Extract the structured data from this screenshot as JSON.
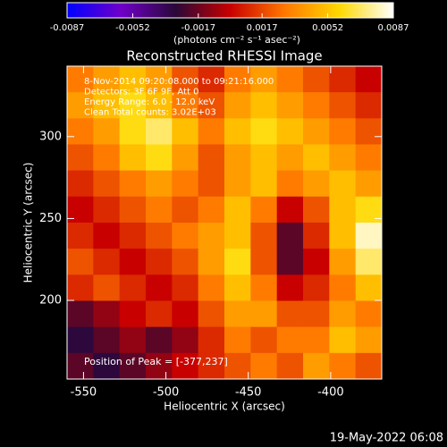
{
  "chart_data": {
    "type": "heatmap",
    "title": "Reconstructed RHESSI Image",
    "x_label": "Heliocentric X (arcsec)",
    "y_label": "Heliocentric Y (arcsec)",
    "colorbar_label": "(photons cm⁻² s⁻¹ asec⁻²)",
    "annotations": [
      "8-Nov-2014 09:20:08.000 to 09:21:16.000",
      "Detectors: 3F 6F 9F, Att 0",
      "Energy Range: 6.0 - 12.0 keV",
      "Clean     Total counts: 3.02E+03"
    ],
    "peak_label": "Position of Peak = [-377,237]",
    "footer": "19-May-2022 06:08",
    "xlim": [
      -560,
      -369
    ],
    "ylim": [
      152,
      343
    ],
    "xticks": [
      -550,
      -500,
      -450,
      -400
    ],
    "yticks": [
      200,
      250,
      300
    ],
    "zlim": [
      -0.0087,
      0.0087
    ],
    "zticks": [
      -0.0087,
      -0.0052,
      -0.0017,
      0.0017,
      0.0052,
      0.0087
    ],
    "colorscale": [
      "#0000ff",
      "#7000c8",
      "#2a0838",
      "#c80000",
      "#ff7800",
      "#ffd800",
      "#ffffff"
    ],
    "values": [
      [
        0.003,
        0.004,
        0.005,
        0.004,
        0.002,
        0.001,
        0.003,
        0.004,
        0.003,
        0.002,
        0.001,
        0.0
      ],
      [
        0.004,
        0.005,
        0.006,
        0.005,
        0.003,
        0.002,
        0.004,
        0.005,
        0.004,
        0.003,
        0.002,
        0.001
      ],
      [
        0.003,
        0.004,
        0.006,
        0.007,
        0.005,
        0.003,
        0.005,
        0.006,
        0.005,
        0.004,
        0.003,
        0.002
      ],
      [
        0.002,
        0.003,
        0.005,
        0.006,
        0.004,
        0.002,
        0.004,
        0.005,
        0.004,
        0.005,
        0.004,
        0.003
      ],
      [
        0.001,
        0.002,
        0.003,
        0.004,
        0.003,
        0.002,
        0.004,
        0.005,
        0.003,
        0.004,
        0.005,
        0.004
      ],
      [
        0.0,
        0.001,
        0.002,
        0.003,
        0.002,
        0.003,
        0.005,
        0.003,
        0.0,
        0.002,
        0.005,
        0.006
      ],
      [
        0.001,
        0.0,
        0.001,
        0.002,
        0.003,
        0.004,
        0.005,
        0.002,
        -0.002,
        0.001,
        0.005,
        0.008
      ],
      [
        0.002,
        0.001,
        0.0,
        0.001,
        0.002,
        0.004,
        0.006,
        0.002,
        -0.002,
        0.0,
        0.004,
        0.007
      ],
      [
        0.001,
        0.002,
        0.001,
        0.0,
        0.001,
        0.003,
        0.005,
        0.003,
        0.0,
        0.001,
        0.003,
        0.005
      ],
      [
        -0.002,
        -0.001,
        0.0,
        0.001,
        0.0,
        0.002,
        0.004,
        0.004,
        0.002,
        0.002,
        0.004,
        0.003
      ],
      [
        -0.003,
        -0.002,
        -0.001,
        -0.002,
        -0.001,
        0.001,
        0.003,
        0.002,
        0.003,
        0.003,
        0.005,
        0.004
      ],
      [
        -0.002,
        -0.003,
        -0.002,
        -0.001,
        0.0,
        0.001,
        0.002,
        0.003,
        0.002,
        0.004,
        0.003,
        0.002
      ]
    ]
  }
}
